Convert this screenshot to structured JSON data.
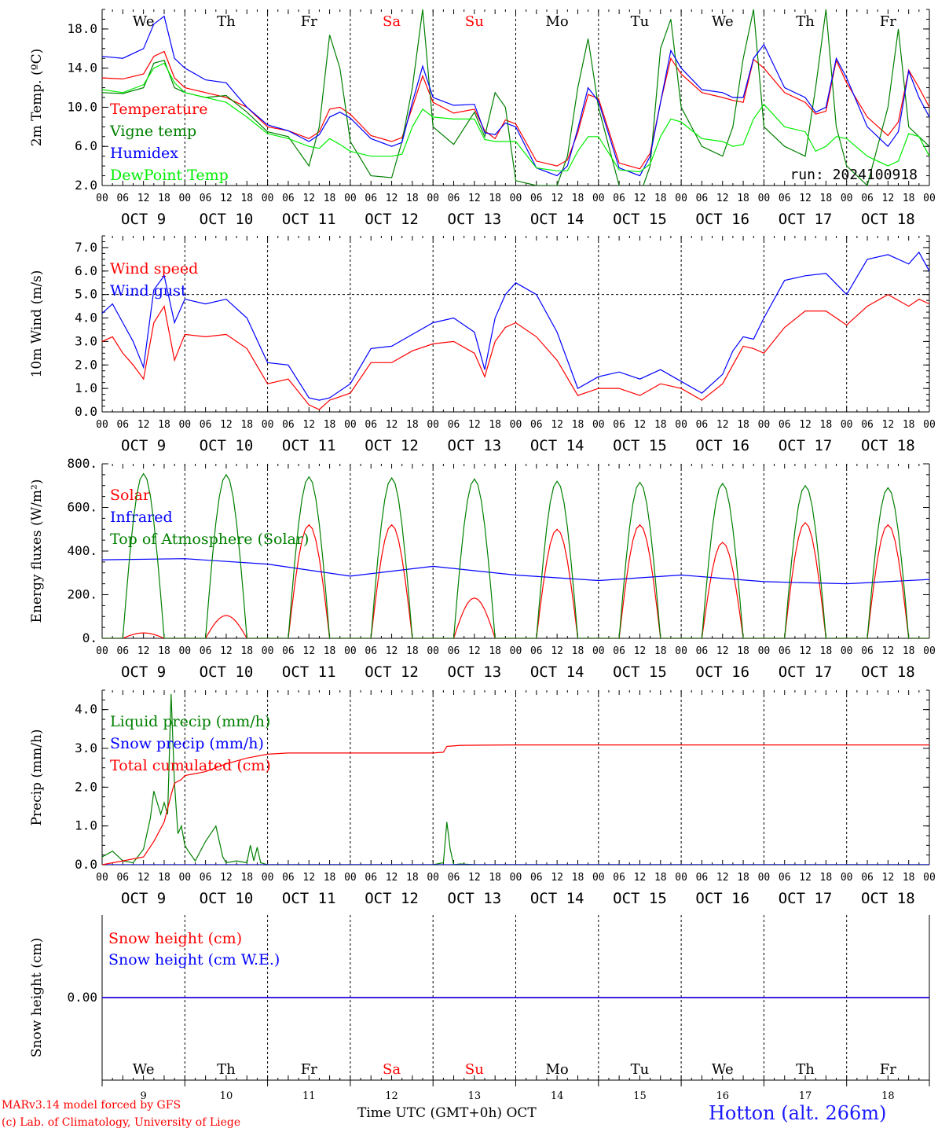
{
  "common": {
    "days": [
      "9",
      "10",
      "11",
      "12",
      "13",
      "14",
      "15",
      "16",
      "17",
      "18"
    ],
    "day_labels": [
      "OCT  9",
      "OCT 10",
      "OCT 11",
      "OCT 12",
      "OCT 13",
      "OCT 14",
      "OCT 15",
      "OCT 16",
      "OCT 17",
      "OCT 18"
    ],
    "weekdays": [
      "We",
      "Th",
      "Fr",
      "Sa",
      "Su",
      "Mo",
      "Tu",
      "We",
      "Th",
      "Fr"
    ],
    "weekend_color": "#ff0000",
    "weekday_color": "#000000",
    "hour_ticks": [
      "00",
      "06",
      "12",
      "18"
    ],
    "month": "OCT"
  },
  "footer": {
    "model": "MARv3.14 model forced by GFS",
    "lab": "(c) Lab. of Climatology, University of Liege",
    "xlabel": "Time UTC (GMT+0h)",
    "month": "OCT",
    "station": "Hotton (alt. 266m)"
  },
  "chart_data": [
    {
      "type": "line",
      "ylabel": "2m Temp. (ºC)",
      "ylim": [
        2,
        20
      ],
      "yticks": [
        "2.0",
        "6.0",
        "10.0",
        "14.0",
        "18.0"
      ],
      "ytick_values": [
        2,
        6,
        10,
        14,
        18
      ],
      "x_unit": "hours since OCT 9 00 UTC",
      "run": "run: 2024100918",
      "series": [
        {
          "name": "Temperature",
          "color": "#ff0000",
          "x": [
            0,
            6,
            12,
            15,
            18,
            21,
            24,
            30,
            36,
            42,
            48,
            54,
            60,
            63,
            66,
            69,
            72,
            78,
            84,
            87,
            90,
            93,
            96,
            102,
            108,
            111,
            114,
            117,
            120,
            126,
            132,
            135,
            138,
            141,
            144,
            150,
            156,
            159,
            162,
            165,
            168,
            174,
            180,
            183,
            186,
            189,
            192,
            198,
            204,
            207,
            210,
            213,
            216,
            222,
            228,
            231,
            234,
            237,
            240
          ],
          "values": [
            13,
            12.9,
            13.4,
            15.2,
            15.7,
            13,
            12,
            11.5,
            11,
            10,
            8,
            7.6,
            6.8,
            7.5,
            9.8,
            10,
            9.3,
            7.1,
            6.5,
            6.9,
            10,
            13.2,
            10.5,
            9.4,
            9.8,
            7.6,
            6.8,
            8.7,
            8.3,
            4.5,
            4,
            4.6,
            7.4,
            11.3,
            10.9,
            4.3,
            3.7,
            5.3,
            10.5,
            15,
            13.4,
            11.5,
            11,
            10.7,
            10.5,
            14.9,
            14,
            11.5,
            10.5,
            9.3,
            9.6,
            14.8,
            12.5,
            9,
            7.1,
            8.5,
            13.8,
            12,
            10
          ]
        },
        {
          "name": "Vigne temp",
          "color": "#008000",
          "x": [
            0,
            6,
            12,
            15,
            18,
            21,
            24,
            30,
            36,
            42,
            48,
            54,
            60,
            63,
            66,
            69,
            72,
            78,
            84,
            87,
            90,
            93,
            96,
            102,
            108,
            111,
            114,
            117,
            120,
            126,
            132,
            135,
            138,
            141,
            144,
            150,
            156,
            159,
            162,
            165,
            168,
            174,
            180,
            183,
            186,
            189,
            192,
            198,
            204,
            207,
            210,
            213,
            216,
            222,
            228,
            231,
            234,
            237,
            240
          ],
          "values": [
            11.5,
            11.4,
            12,
            14.5,
            14.8,
            12,
            11.5,
            11,
            11.2,
            9.5,
            7.5,
            7,
            4,
            8,
            17.4,
            14,
            6.5,
            3,
            2.8,
            6.5,
            12,
            20,
            8,
            6.2,
            9.5,
            7,
            11.5,
            10,
            2.5,
            2,
            2,
            5,
            12,
            17,
            10,
            2,
            1,
            4,
            16,
            19,
            10,
            6,
            5,
            8,
            15,
            20,
            8,
            6,
            5,
            12,
            20,
            8,
            4,
            2,
            10,
            18,
            8,
            7,
            6
          ]
        },
        {
          "name": "Humidex",
          "color": "#0000ff",
          "x": [
            0,
            6,
            12,
            15,
            18,
            21,
            24,
            30,
            36,
            42,
            48,
            54,
            60,
            63,
            66,
            69,
            72,
            78,
            84,
            87,
            90,
            93,
            96,
            102,
            108,
            111,
            114,
            117,
            120,
            126,
            132,
            135,
            138,
            141,
            144,
            150,
            156,
            159,
            162,
            165,
            168,
            174,
            180,
            183,
            186,
            189,
            192,
            198,
            204,
            207,
            210,
            213,
            216,
            222,
            228,
            231,
            234,
            237,
            240
          ],
          "values": [
            15.2,
            15,
            16,
            18.5,
            19.3,
            15,
            14,
            12.8,
            12.5,
            10,
            8.2,
            7.6,
            6.5,
            7.2,
            9,
            9.5,
            8.9,
            6.8,
            6,
            6.4,
            10.5,
            14.2,
            11,
            10.2,
            10.3,
            7.4,
            7.2,
            8.4,
            8,
            3.8,
            3,
            4,
            7.8,
            12,
            10.6,
            3.8,
            3,
            5,
            10.5,
            15.8,
            14,
            11.8,
            11.5,
            11,
            11,
            15,
            16.4,
            12,
            11,
            9.5,
            10,
            15,
            13,
            8,
            6,
            7.5,
            13.7,
            11,
            9
          ]
        },
        {
          "name": "DewPoint Temp",
          "color": "#00ee00",
          "x": [
            0,
            6,
            12,
            15,
            18,
            21,
            24,
            30,
            36,
            42,
            48,
            54,
            60,
            63,
            66,
            69,
            72,
            78,
            84,
            87,
            90,
            93,
            96,
            102,
            108,
            111,
            114,
            117,
            120,
            126,
            132,
            135,
            138,
            141,
            144,
            150,
            156,
            159,
            162,
            165,
            168,
            174,
            180,
            183,
            186,
            189,
            192,
            198,
            204,
            207,
            210,
            213,
            216,
            222,
            228,
            231,
            234,
            237,
            240
          ],
          "values": [
            11.8,
            11.5,
            12.3,
            14,
            14.5,
            12.5,
            11.5,
            11,
            10.5,
            9,
            7.3,
            6.8,
            6,
            5.8,
            6.8,
            6.2,
            5.5,
            5,
            5,
            5.2,
            8,
            9.8,
            9,
            8.8,
            8.8,
            6.7,
            6.5,
            6.5,
            6.5,
            3.8,
            3.5,
            3.5,
            5.5,
            7,
            7,
            3.6,
            3.4,
            4.2,
            7,
            8.8,
            8.5,
            6.8,
            6.5,
            6,
            6.2,
            8.8,
            10.3,
            8,
            7.5,
            5.5,
            6,
            7,
            6.8,
            5,
            4,
            4.5,
            7.3,
            7,
            5
          ]
        }
      ]
    },
    {
      "type": "line",
      "ylabel": "10m Wind (m/s)",
      "ylim": [
        0,
        7.5
      ],
      "yticks": [
        "0.0",
        "1.0",
        "2.0",
        "3.0",
        "4.0",
        "5.0",
        "6.0",
        "7.0"
      ],
      "ytick_values": [
        0,
        1,
        2,
        3,
        4,
        5,
        6,
        7
      ],
      "ref_line": 5.0,
      "series": [
        {
          "name": "Wind speed",
          "color": "#ff0000",
          "x": [
            0,
            3,
            6,
            9,
            12,
            15,
            18,
            21,
            24,
            30,
            36,
            42,
            48,
            54,
            60,
            63,
            66,
            72,
            78,
            84,
            90,
            96,
            102,
            108,
            111,
            114,
            117,
            120,
            126,
            132,
            138,
            144,
            150,
            156,
            162,
            168,
            174,
            180,
            183,
            186,
            189,
            192,
            198,
            204,
            210,
            216,
            222,
            228,
            234,
            237,
            240
          ],
          "values": [
            3,
            3.2,
            2.5,
            2,
            1.4,
            3.8,
            4.5,
            2.2,
            3.3,
            3.2,
            3.3,
            2.7,
            1.2,
            1.4,
            0.3,
            0.1,
            0.5,
            0.8,
            2.1,
            2.1,
            2.6,
            2.9,
            3,
            2.5,
            1.5,
            3,
            3.6,
            3.8,
            3.2,
            2.2,
            0.7,
            1,
            1,
            0.7,
            1.2,
            1,
            0.5,
            1.2,
            2,
            2.8,
            2.7,
            2.5,
            3.6,
            4.3,
            4.3,
            3.7,
            4.5,
            5,
            4.5,
            4.8,
            4.6
          ]
        },
        {
          "name": "Wind gust",
          "color": "#0000ff",
          "x": [
            0,
            3,
            6,
            9,
            12,
            15,
            18,
            21,
            24,
            30,
            36,
            42,
            48,
            54,
            60,
            63,
            66,
            72,
            78,
            84,
            90,
            96,
            102,
            108,
            111,
            114,
            117,
            120,
            126,
            132,
            138,
            144,
            150,
            156,
            162,
            168,
            174,
            180,
            183,
            186,
            189,
            192,
            198,
            204,
            210,
            216,
            222,
            228,
            234,
            237,
            240
          ],
          "values": [
            4.2,
            4.6,
            3.8,
            3,
            1.9,
            5.2,
            5.8,
            3.8,
            4.8,
            4.6,
            4.8,
            4,
            2.1,
            2,
            0.6,
            0.5,
            0.6,
            1.2,
            2.7,
            2.8,
            3.3,
            3.8,
            4,
            3.4,
            1.8,
            4,
            5,
            5.5,
            5,
            3.4,
            1,
            1.5,
            1.7,
            1.4,
            1.8,
            1.3,
            0.8,
            1.6,
            2.6,
            3.2,
            3.1,
            4,
            5.6,
            5.8,
            5.9,
            5,
            6.5,
            6.7,
            6.3,
            6.8,
            6
          ]
        }
      ]
    },
    {
      "type": "line",
      "ylabel": "Energy fluxes (W/m²)",
      "ylim": [
        0,
        800
      ],
      "yticks": [
        "0.",
        "200.",
        "400.",
        "600.",
        "800."
      ],
      "ytick_values": [
        0,
        200,
        400,
        600,
        800
      ],
      "series": [
        {
          "name": "Solar",
          "color": "#ff0000",
          "peaks": [
            25,
            105,
            520,
            520,
            185,
            500,
            520,
            440,
            530,
            520
          ]
        },
        {
          "name": "Infrared",
          "color": "#0000ff",
          "daily": [
            360,
            365,
            340,
            285,
            330,
            290,
            265,
            290,
            260,
            250,
            270
          ]
        },
        {
          "name": "Top of Atmosphere (Solar)",
          "color": "#008000",
          "peaks": [
            755,
            750,
            740,
            735,
            730,
            720,
            715,
            710,
            700,
            690
          ]
        }
      ]
    },
    {
      "type": "line",
      "ylabel": "Precip (mm/h)",
      "ylim": [
        0,
        4.5
      ],
      "yticks": [
        "0.0",
        "1.0",
        "2.0",
        "3.0",
        "4.0"
      ],
      "ytick_values": [
        0,
        1,
        2,
        3,
        4
      ],
      "series": [
        {
          "name": "Liquid precip (mm/h)",
          "color": "#008000",
          "x": [
            0,
            3,
            6,
            9,
            12,
            14,
            15,
            16,
            17,
            18,
            19,
            20,
            21,
            22,
            23,
            24,
            25,
            27,
            30,
            33,
            35,
            36,
            39,
            42,
            43,
            44,
            45,
            46,
            48,
            50,
            96,
            99,
            100,
            101,
            102,
            104,
            108,
            240
          ],
          "values": [
            0.2,
            0.35,
            0.1,
            0.05,
            0.4,
            1.2,
            1.9,
            1.6,
            1.3,
            1.6,
            1.3,
            4.4,
            2.1,
            0.8,
            1,
            0.5,
            0.35,
            0.1,
            0.6,
            1,
            0.2,
            0.05,
            0.1,
            0.05,
            0.5,
            0.1,
            0.45,
            0.05,
            0,
            0,
            0,
            0.05,
            1.1,
            0.4,
            0,
            0.02,
            0,
            0
          ]
        },
        {
          "name": "Snow precip (mm/h)",
          "color": "#0000ff",
          "x": [
            0,
            240
          ],
          "values": [
            0,
            0
          ]
        },
        {
          "name": "Total cumulated (cm)",
          "color": "#ff0000",
          "x": [
            0,
            6,
            12,
            15,
            18,
            20,
            21,
            23,
            24,
            27,
            30,
            36,
            42,
            48,
            54,
            96,
            99,
            100,
            104,
            120,
            240
          ],
          "values": [
            0,
            0.1,
            0.2,
            0.6,
            1.1,
            1.8,
            2.1,
            2.2,
            2.3,
            2.35,
            2.4,
            2.6,
            2.75,
            2.85,
            2.88,
            2.88,
            2.9,
            3.05,
            3.08,
            3.09,
            3.09
          ]
        }
      ]
    },
    {
      "type": "line",
      "ylabel": "Snow height (cm)",
      "ylim": [
        -1,
        1
      ],
      "yticks": [
        "0.00"
      ],
      "ytick_values": [
        0
      ],
      "series": [
        {
          "name": "Snow height (cm)",
          "color": "#ff0000",
          "x": [
            0,
            240
          ],
          "values": [
            0,
            0
          ]
        },
        {
          "name": "Snow height (cm W.E.)",
          "color": "#0000ff",
          "x": [
            0,
            240
          ],
          "values": [
            0,
            0
          ]
        }
      ]
    }
  ]
}
